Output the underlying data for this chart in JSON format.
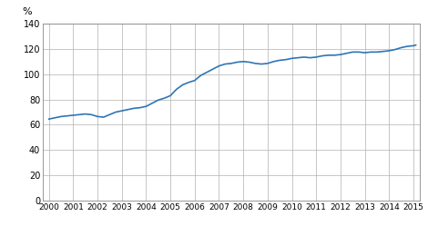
{
  "ylabel_top": "%",
  "ylim": [
    0,
    140
  ],
  "yticks": [
    0,
    20,
    40,
    60,
    80,
    100,
    120,
    140
  ],
  "xlim": [
    1999.75,
    2015.25
  ],
  "line_color": "#2e75b6",
  "line_width": 1.2,
  "background_color": "#ffffff",
  "grid_color": "#b0b0b0",
  "x_years": [
    2000,
    2001,
    2002,
    2003,
    2004,
    2005,
    2006,
    2007,
    2008,
    2009,
    2010,
    2011,
    2012,
    2013,
    2014,
    2015
  ],
  "data": [
    [
      2000.0,
      64.5
    ],
    [
      2000.25,
      65.5
    ],
    [
      2000.5,
      66.5
    ],
    [
      2000.75,
      67.0
    ],
    [
      2001.0,
      67.5
    ],
    [
      2001.25,
      68.0
    ],
    [
      2001.5,
      68.5
    ],
    [
      2001.75,
      68.0
    ],
    [
      2002.0,
      66.5
    ],
    [
      2002.25,
      66.0
    ],
    [
      2002.5,
      68.0
    ],
    [
      2002.75,
      70.0
    ],
    [
      2003.0,
      71.0
    ],
    [
      2003.25,
      72.0
    ],
    [
      2003.5,
      73.0
    ],
    [
      2003.75,
      73.5
    ],
    [
      2004.0,
      74.5
    ],
    [
      2004.25,
      77.0
    ],
    [
      2004.5,
      79.5
    ],
    [
      2004.75,
      81.0
    ],
    [
      2005.0,
      83.0
    ],
    [
      2005.25,
      88.0
    ],
    [
      2005.5,
      91.5
    ],
    [
      2005.75,
      93.5
    ],
    [
      2006.0,
      95.0
    ],
    [
      2006.25,
      99.0
    ],
    [
      2006.5,
      101.5
    ],
    [
      2006.75,
      104.0
    ],
    [
      2007.0,
      106.5
    ],
    [
      2007.25,
      108.0
    ],
    [
      2007.5,
      108.5
    ],
    [
      2007.75,
      109.5
    ],
    [
      2008.0,
      110.0
    ],
    [
      2008.25,
      109.5
    ],
    [
      2008.5,
      108.5
    ],
    [
      2008.75,
      108.0
    ],
    [
      2009.0,
      108.5
    ],
    [
      2009.25,
      110.0
    ],
    [
      2009.5,
      111.0
    ],
    [
      2009.75,
      111.5
    ],
    [
      2010.0,
      112.5
    ],
    [
      2010.25,
      113.0
    ],
    [
      2010.5,
      113.5
    ],
    [
      2010.75,
      113.0
    ],
    [
      2011.0,
      113.5
    ],
    [
      2011.25,
      114.5
    ],
    [
      2011.5,
      115.0
    ],
    [
      2011.75,
      115.0
    ],
    [
      2012.0,
      115.5
    ],
    [
      2012.25,
      116.5
    ],
    [
      2012.5,
      117.5
    ],
    [
      2012.75,
      117.5
    ],
    [
      2013.0,
      117.0
    ],
    [
      2013.25,
      117.5
    ],
    [
      2013.5,
      117.5
    ],
    [
      2013.75,
      118.0
    ],
    [
      2014.0,
      118.5
    ],
    [
      2014.25,
      119.5
    ],
    [
      2014.5,
      121.0
    ],
    [
      2014.75,
      122.0
    ],
    [
      2015.0,
      122.5
    ],
    [
      2015.1,
      123.0
    ]
  ]
}
